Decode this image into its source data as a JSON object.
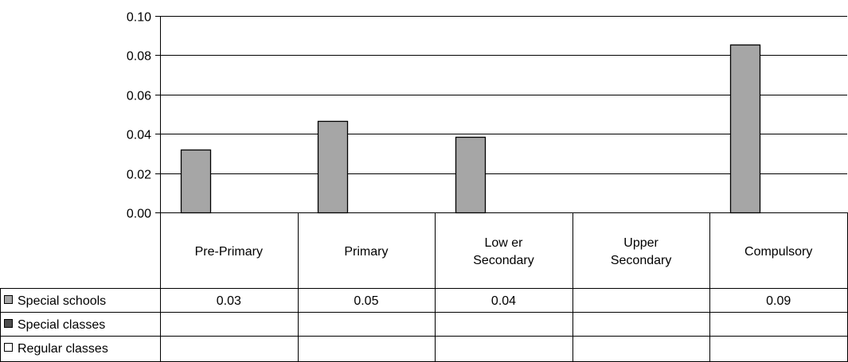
{
  "chart_data": {
    "type": "bar",
    "categories": [
      "Pre-Primary",
      "Primary",
      "Low er Secondary",
      "Upper Secondary",
      "Compulsory"
    ],
    "category_lines": [
      [
        "Pre-Primary"
      ],
      [
        "Primary"
      ],
      [
        "Low er",
        "Secondary"
      ],
      [
        "Upper",
        "Secondary"
      ],
      [
        "Compulsory"
      ]
    ],
    "y_ticks": [
      "0.00",
      "0.02",
      "0.04",
      "0.06",
      "0.08",
      "0.10"
    ],
    "ylim": [
      0,
      0.1
    ],
    "grid": true,
    "series": [
      {
        "name": "Special schools",
        "color": "#a6a6a6",
        "values": [
          0.032,
          0.0465,
          0.0385,
          null,
          0.0855
        ],
        "labels": [
          "0.03",
          "0.05",
          "0.04",
          "",
          "0.09"
        ]
      },
      {
        "name": "Special classes",
        "color": "#4d4d4d",
        "values": [
          null,
          null,
          null,
          null,
          null
        ],
        "labels": [
          "",
          "",
          "",
          "",
          ""
        ]
      },
      {
        "name": "Regular classes",
        "color": "#ffffff",
        "values": [
          null,
          null,
          null,
          null,
          null
        ],
        "labels": [
          "",
          "",
          "",
          "",
          ""
        ]
      }
    ],
    "legend_position": "data-table"
  }
}
